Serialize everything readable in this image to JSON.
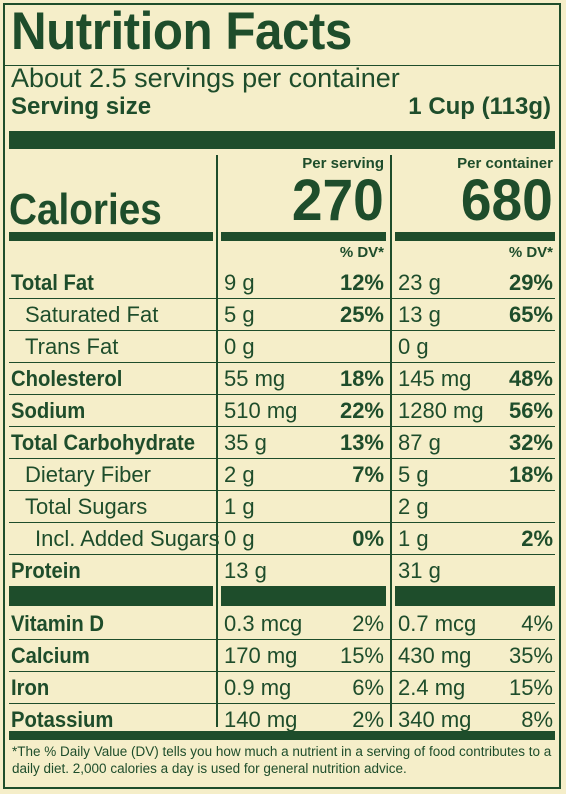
{
  "title": "Nutrition Facts",
  "servings_per_container": "About 2.5 servings per container",
  "serving_size_label": "Serving size",
  "serving_size_value": "1 Cup (113g)",
  "per_serving_header": "Per serving",
  "per_container_header": "Per container",
  "calories_label": "Calories",
  "calories_per_serving": "270",
  "calories_per_container": "680",
  "dv_header": "% DV*",
  "nutrients": [
    {
      "name": "Total Fat",
      "bold": true,
      "indent": 0,
      "serving_amount": "9 g",
      "serving_dv": "12%",
      "container_amount": "23 g",
      "container_dv": "29%"
    },
    {
      "name": "Saturated Fat",
      "bold": false,
      "indent": 1,
      "serving_amount": "5 g",
      "serving_dv": "25%",
      "container_amount": "13 g",
      "container_dv": "65%"
    },
    {
      "name": "Trans Fat",
      "bold": false,
      "indent": 1,
      "serving_amount": "0 g",
      "serving_dv": "",
      "container_amount": "0 g",
      "container_dv": ""
    },
    {
      "name": "Cholesterol",
      "bold": true,
      "indent": 0,
      "serving_amount": "55 mg",
      "serving_dv": "18%",
      "container_amount": "145 mg",
      "container_dv": "48%"
    },
    {
      "name": "Sodium",
      "bold": true,
      "indent": 0,
      "serving_amount": "510 mg",
      "serving_dv": "22%",
      "container_amount": "1280 mg",
      "container_dv": "56%"
    },
    {
      "name": "Total Carbohydrate",
      "bold": true,
      "indent": 0,
      "serving_amount": "35 g",
      "serving_dv": "13%",
      "container_amount": "87 g",
      "container_dv": "32%"
    },
    {
      "name": "Dietary Fiber",
      "bold": false,
      "indent": 1,
      "serving_amount": "2 g",
      "serving_dv": "7%",
      "container_amount": "5 g",
      "container_dv": "18%"
    },
    {
      "name": "Total Sugars",
      "bold": false,
      "indent": 1,
      "serving_amount": "1 g",
      "serving_dv": "",
      "container_amount": "2 g",
      "container_dv": ""
    },
    {
      "name": "Incl. Added Sugars",
      "bold": false,
      "indent": 2,
      "serving_amount": "0 g",
      "serving_dv": "0%",
      "container_amount": "1 g",
      "container_dv": "2%"
    },
    {
      "name": "Protein",
      "bold": true,
      "indent": 0,
      "serving_amount": "13 g",
      "serving_dv": "",
      "container_amount": "31 g",
      "container_dv": ""
    }
  ],
  "vitamins": [
    {
      "name": "Vitamin D",
      "serving_amount": "0.3 mcg",
      "serving_dv": "2%",
      "container_amount": "0.7 mcg",
      "container_dv": "4%"
    },
    {
      "name": "Calcium",
      "serving_amount": "170 mg",
      "serving_dv": "15%",
      "container_amount": "430 mg",
      "container_dv": "35%"
    },
    {
      "name": "Iron",
      "serving_amount": "0.9 mg",
      "serving_dv": "6%",
      "container_amount": "2.4 mg",
      "container_dv": "15%"
    },
    {
      "name": "Potassium",
      "serving_amount": "140 mg",
      "serving_dv": "2%",
      "container_amount": "340 mg",
      "container_dv": "8%"
    }
  ],
  "footnote": "*The % Daily Value (DV) tells you how much a nutrient in a serving of food contributes to a daily diet. 2,000 calories a day is used for general nutrition advice.",
  "colors": {
    "ink": "#1e4d2b",
    "background": "#f5eec9"
  }
}
